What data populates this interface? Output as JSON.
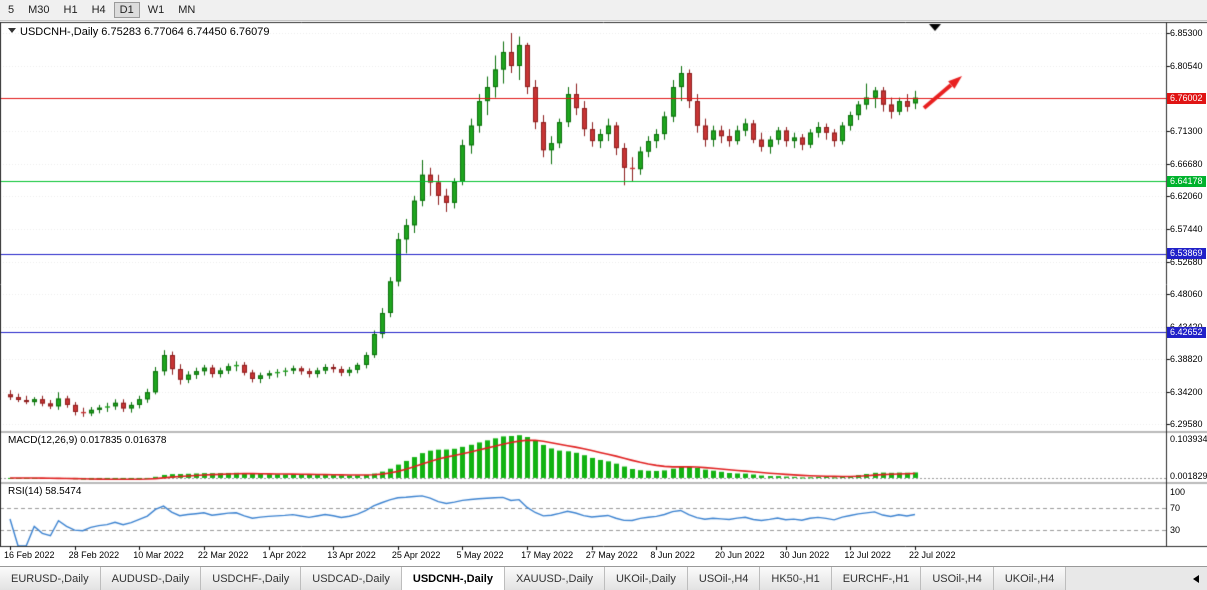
{
  "toolbar": {
    "timeframes": [
      "5",
      "M30",
      "H1",
      "H4",
      "D1",
      "W1",
      "MN"
    ],
    "active": "D1"
  },
  "chart": {
    "title": "USDCNH-,Daily",
    "ohlc": "6.75283 6.77064 6.74450 6.76079",
    "open": "6.75283",
    "high": "6.77064",
    "low": "6.74450",
    "close": "6.76079"
  },
  "price_axis": {
    "labels": [
      "6.85300",
      "6.80540",
      "6.71300",
      "6.66680",
      "6.62060",
      "6.57440",
      "6.52680",
      "6.48060",
      "6.43420",
      "6.38820",
      "6.34200",
      "6.29580"
    ],
    "badges": [
      {
        "value": "6.76002",
        "color": "#e01414"
      },
      {
        "value": "6.64178",
        "color": "#00b22d"
      },
      {
        "value": "6.53869",
        "color": "#2121c8"
      },
      {
        "value": "6.42652",
        "color": "#2121c8"
      }
    ]
  },
  "hlines": [
    {
      "price": 6.76002,
      "color": "#e01414"
    },
    {
      "price": 6.64178,
      "color": "#00c22d"
    },
    {
      "price": 6.53869,
      "color": "#2121c8"
    },
    {
      "price": 6.42652,
      "color": "#2121c8"
    }
  ],
  "indicators": {
    "macd": {
      "label": "MACD(12,26,9)",
      "values": "0.017835 0.016378",
      "axis_top": "0.103934",
      "axis_bottom": "0.001829"
    },
    "rsi": {
      "label": "RSI(14)",
      "value": "58.5474",
      "axis": [
        "100",
        "70",
        "30"
      ],
      "levels": [
        70,
        30
      ]
    }
  },
  "date_axis": {
    "labels": [
      "16 Feb 2022",
      "28 Feb 2022",
      "10 Mar 2022",
      "22 Mar 2022",
      "1 Apr 2022",
      "13 Apr 2022",
      "25 Apr 2022",
      "5 May 2022",
      "17 May 2022",
      "27 May 2022",
      "8 Jun 2022",
      "20 Jun 2022",
      "30 Jun 2022",
      "12 Jul 2022",
      "22 Jul 2022"
    ],
    "indices": [
      0,
      8,
      16,
      24,
      32,
      40,
      48,
      56,
      64,
      72,
      80,
      88,
      96,
      104,
      112
    ]
  },
  "tabs": {
    "items": [
      "EURUSD-,Daily",
      "AUDUSD-,Daily",
      "USDCHF-,Daily",
      "USDCAD-,Daily",
      "USDCNH-,Daily",
      "XAUUSD-,Daily",
      "UKOil-,Daily",
      "USOil-,H4",
      "HK50-,H1",
      "EURCHF-,H1",
      "USOil-,H4",
      "UKOil-,H4"
    ],
    "active_index": 4
  },
  "annotations": {
    "trend_arrow": {
      "color": "#e82020",
      "direction": "up-right"
    },
    "current_bar_marker": "down-triangle"
  },
  "colors": {
    "bull": "#1fa51f",
    "bull_edge": "#0b6f0b",
    "bear": "#c73535",
    "bear_edge": "#8d1d1d",
    "macd_histogram": "#12b212",
    "macd_signal": "#e02020",
    "rsi_line": "#3b82d0",
    "background": "#ffffff",
    "toolbar_bg": "#f0f0f0"
  },
  "chart_data": {
    "type": "candlestick",
    "symbol": "USDCNH-",
    "timeframe": "Daily",
    "x_range": [
      "16 Feb 2022",
      "22 Jul 2022"
    ],
    "y_range": [
      6.2858,
      6.8673
    ],
    "horizontal_lines": [
      6.76002,
      6.64178,
      6.53869,
      6.42652
    ],
    "sub_indicators": [
      "MACD(12,26,9)",
      "RSI(14)"
    ],
    "candles": [
      [
        6.338,
        6.344,
        6.33,
        6.334
      ],
      [
        6.334,
        6.339,
        6.327,
        6.33
      ],
      [
        6.33,
        6.336,
        6.324,
        6.327
      ],
      [
        6.327,
        6.334,
        6.322,
        6.331
      ],
      [
        6.331,
        6.336,
        6.321,
        6.325
      ],
      [
        6.325,
        6.33,
        6.317,
        6.321
      ],
      [
        6.321,
        6.341,
        6.316,
        6.332
      ],
      [
        6.332,
        6.336,
        6.319,
        6.323
      ],
      [
        6.323,
        6.327,
        6.308,
        6.313
      ],
      [
        6.313,
        6.319,
        6.306,
        6.311
      ],
      [
        6.311,
        6.32,
        6.307,
        6.316
      ],
      [
        6.316,
        6.323,
        6.311,
        6.319
      ],
      [
        6.319,
        6.326,
        6.313,
        6.321
      ],
      [
        6.321,
        6.331,
        6.316,
        6.326
      ],
      [
        6.326,
        6.331,
        6.313,
        6.318
      ],
      [
        6.318,
        6.327,
        6.312,
        6.323
      ],
      [
        6.323,
        6.336,
        6.318,
        6.331
      ],
      [
        6.331,
        6.346,
        6.326,
        6.341
      ],
      [
        6.341,
        6.377,
        6.338,
        6.371
      ],
      [
        6.371,
        6.401,
        6.365,
        6.394
      ],
      [
        6.394,
        6.399,
        6.366,
        6.374
      ],
      [
        6.374,
        6.381,
        6.352,
        6.359
      ],
      [
        6.359,
        6.371,
        6.354,
        6.366
      ],
      [
        6.366,
        6.376,
        6.36,
        6.371
      ],
      [
        6.371,
        6.38,
        6.365,
        6.376
      ],
      [
        6.376,
        6.38,
        6.362,
        6.367
      ],
      [
        6.367,
        6.376,
        6.362,
        6.372
      ],
      [
        6.372,
        6.382,
        6.367,
        6.378
      ],
      [
        6.378,
        6.385,
        6.371,
        6.38
      ],
      [
        6.38,
        6.384,
        6.365,
        6.369
      ],
      [
        6.369,
        6.373,
        6.355,
        6.36
      ],
      [
        6.36,
        6.369,
        6.354,
        6.365
      ],
      [
        6.365,
        6.372,
        6.36,
        6.368
      ],
      [
        6.368,
        6.374,
        6.362,
        6.37
      ],
      [
        6.37,
        6.376,
        6.364,
        6.372
      ],
      [
        6.372,
        6.379,
        6.367,
        6.375
      ],
      [
        6.375,
        6.378,
        6.366,
        6.371
      ],
      [
        6.371,
        6.375,
        6.362,
        6.367
      ],
      [
        6.367,
        6.376,
        6.362,
        6.372
      ],
      [
        6.372,
        6.381,
        6.367,
        6.377
      ],
      [
        6.377,
        6.381,
        6.369,
        6.374
      ],
      [
        6.374,
        6.378,
        6.364,
        6.369
      ],
      [
        6.369,
        6.377,
        6.364,
        6.373
      ],
      [
        6.373,
        6.383,
        6.368,
        6.38
      ],
      [
        6.38,
        6.398,
        6.375,
        6.394
      ],
      [
        6.394,
        6.429,
        6.39,
        6.424
      ],
      [
        6.424,
        6.461,
        6.418,
        6.454
      ],
      [
        6.454,
        6.505,
        6.448,
        6.499
      ],
      [
        6.499,
        6.568,
        6.492,
        6.559
      ],
      [
        6.559,
        6.588,
        6.539,
        6.579
      ],
      [
        6.579,
        6.621,
        6.568,
        6.614
      ],
      [
        6.614,
        6.672,
        6.606,
        6.651
      ],
      [
        6.651,
        6.661,
        6.621,
        6.64
      ],
      [
        6.64,
        6.651,
        6.608,
        6.621
      ],
      [
        6.621,
        6.631,
        6.598,
        6.611
      ],
      [
        6.611,
        6.646,
        6.603,
        6.641
      ],
      [
        6.641,
        6.701,
        6.636,
        6.693
      ],
      [
        6.693,
        6.731,
        6.681,
        6.721
      ],
      [
        6.721,
        6.766,
        6.711,
        6.756
      ],
      [
        6.756,
        6.791,
        6.736,
        6.776
      ],
      [
        6.776,
        6.821,
        6.761,
        6.801
      ],
      [
        6.801,
        6.841,
        6.781,
        6.826
      ],
      [
        6.826,
        6.853,
        6.796,
        6.806
      ],
      [
        6.806,
        6.848,
        6.786,
        6.836
      ],
      [
        6.836,
        6.839,
        6.766,
        6.776
      ],
      [
        6.776,
        6.786,
        6.716,
        6.726
      ],
      [
        6.726,
        6.736,
        6.676,
        6.686
      ],
      [
        6.686,
        6.706,
        6.666,
        6.696
      ],
      [
        6.696,
        6.731,
        6.689,
        6.726
      ],
      [
        6.726,
        6.776,
        6.719,
        6.766
      ],
      [
        6.766,
        6.781,
        6.736,
        6.746
      ],
      [
        6.746,
        6.756,
        6.706,
        6.716
      ],
      [
        6.716,
        6.726,
        6.691,
        6.699
      ],
      [
        6.699,
        6.716,
        6.689,
        6.709
      ],
      [
        6.709,
        6.731,
        6.699,
        6.721
      ],
      [
        6.721,
        6.726,
        6.679,
        6.689
      ],
      [
        6.689,
        6.696,
        6.636,
        6.661
      ],
      [
        6.661,
        6.676,
        6.641,
        6.659
      ],
      [
        6.659,
        6.691,
        6.651,
        6.684
      ],
      [
        6.684,
        6.706,
        6.676,
        6.699
      ],
      [
        6.699,
        6.716,
        6.689,
        6.709
      ],
      [
        6.709,
        6.741,
        6.701,
        6.734
      ],
      [
        6.734,
        6.786,
        6.726,
        6.776
      ],
      [
        6.776,
        6.806,
        6.756,
        6.796
      ],
      [
        6.796,
        6.801,
        6.746,
        6.756
      ],
      [
        6.756,
        6.766,
        6.711,
        6.721
      ],
      [
        6.721,
        6.731,
        6.691,
        6.701
      ],
      [
        6.701,
        6.721,
        6.691,
        6.714
      ],
      [
        6.714,
        6.721,
        6.696,
        6.706
      ],
      [
        6.706,
        6.716,
        6.691,
        6.699
      ],
      [
        6.699,
        6.721,
        6.694,
        6.714
      ],
      [
        6.714,
        6.731,
        6.706,
        6.724
      ],
      [
        6.724,
        6.729,
        6.696,
        6.701
      ],
      [
        6.701,
        6.711,
        6.684,
        6.691
      ],
      [
        6.691,
        6.706,
        6.681,
        6.701
      ],
      [
        6.701,
        6.719,
        6.694,
        6.714
      ],
      [
        6.714,
        6.719,
        6.691,
        6.699
      ],
      [
        6.699,
        6.711,
        6.689,
        6.704
      ],
      [
        6.704,
        6.709,
        6.686,
        6.694
      ],
      [
        6.694,
        6.716,
        6.689,
        6.711
      ],
      [
        6.711,
        6.726,
        6.704,
        6.719
      ],
      [
        6.719,
        6.724,
        6.701,
        6.711
      ],
      [
        6.711,
        6.716,
        6.691,
        6.699
      ],
      [
        6.699,
        6.726,
        6.694,
        6.721
      ],
      [
        6.721,
        6.741,
        6.714,
        6.736
      ],
      [
        6.736,
        6.756,
        6.729,
        6.751
      ],
      [
        6.751,
        6.781,
        6.744,
        6.761
      ],
      [
        6.761,
        6.776,
        6.746,
        6.771
      ],
      [
        6.771,
        6.776,
        6.741,
        6.751
      ],
      [
        6.751,
        6.761,
        6.731,
        6.741
      ],
      [
        6.741,
        6.761,
        6.736,
        6.756
      ],
      [
        6.756,
        6.766,
        6.741,
        6.748
      ],
      [
        6.75283,
        6.77064,
        6.7445,
        6.76079
      ]
    ]
  }
}
